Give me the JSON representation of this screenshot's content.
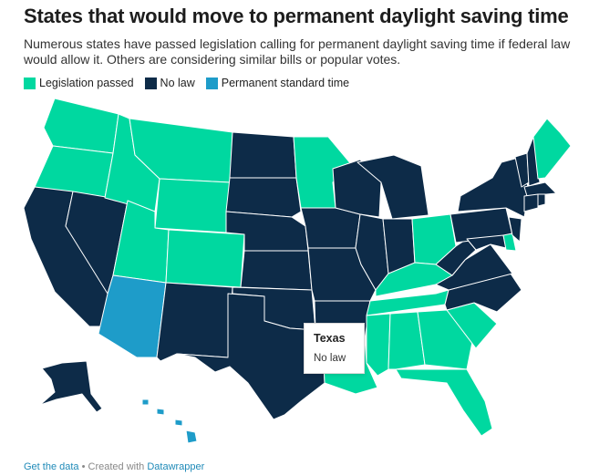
{
  "title": "States that would move to permanent daylight saving time",
  "subtitle": "Numerous states have passed legislation calling for permanent daylight saving time if federal law would allow it. Others are considering similar bills or popular votes.",
  "legend": [
    {
      "label": "Legislation passed",
      "color": "#00d8a0"
    },
    {
      "label": "No law",
      "color": "#0d2b48"
    },
    {
      "label": "Permanent standard time",
      "color": "#1e9cc9"
    }
  ],
  "colors": {
    "legislation_passed": "#00d8a0",
    "no_law": "#0d2b48",
    "permanent_standard": "#1e9cc9"
  },
  "tooltip": {
    "title": "Texas",
    "value": "No law"
  },
  "footer": {
    "get_data": "Get the data",
    "separator": " • Created with ",
    "tool": "Datawrapper"
  }
}
